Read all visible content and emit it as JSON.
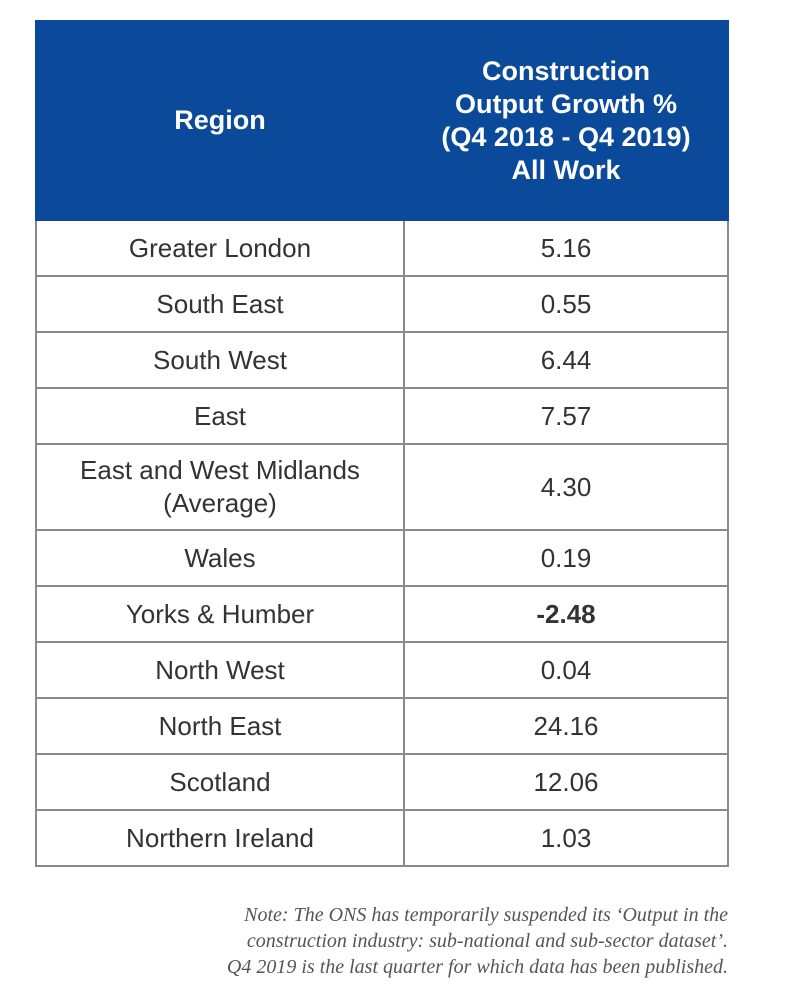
{
  "table": {
    "header": {
      "region": "Region",
      "growth_lines": [
        "Construction",
        "Output Growth %",
        "(Q4 2018 - Q4 2019)",
        "All Work"
      ]
    },
    "rows": [
      {
        "region": "Greater London",
        "value": "5.16"
      },
      {
        "region_lines": [
          "East and West Midlands",
          "(Average)"
        ],
        "value": "4.30"
      }
    ],
    "rows_simple": [
      {
        "region": "South East",
        "value": "0.55"
      },
      {
        "region": "South West",
        "value": "6.44"
      },
      {
        "region": "East",
        "value": "7.57"
      }
    ],
    "rows_after": [
      {
        "region": "Wales",
        "value": "0.19"
      },
      {
        "region": "Yorks & Humber",
        "value": "-2.48"
      },
      {
        "region": "North West",
        "value": "0.04"
      },
      {
        "region": "North East",
        "value": "24.16"
      },
      {
        "region": "Scotland",
        "value": "12.06"
      },
      {
        "region": "Northern Ireland",
        "value": "1.03"
      }
    ]
  },
  "note": {
    "lines": [
      "Note: The ONS has temporarily suspended its ‘Output in the",
      "construction industry: sub-national and sub-sector dataset’.",
      "Q4 2019 is the last quarter for which data has been published."
    ]
  }
}
